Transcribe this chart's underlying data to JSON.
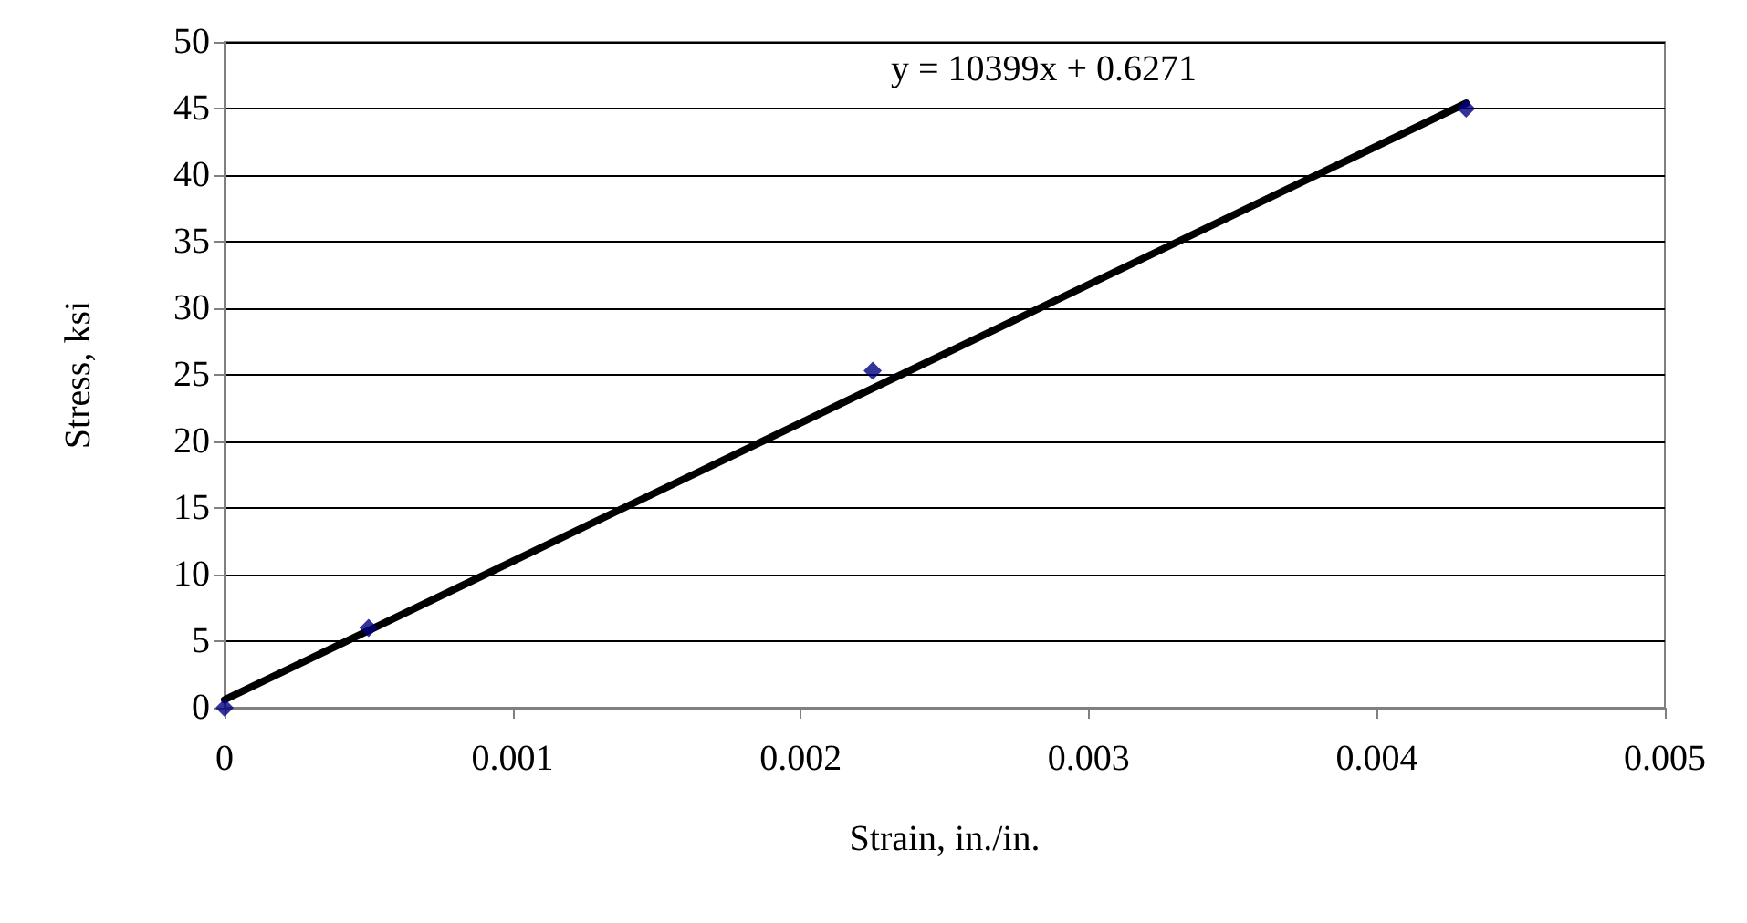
{
  "chart_data": {
    "type": "scatter",
    "xlabel": "Strain, in./in.",
    "ylabel": "Stress, ksi",
    "xlim": [
      0,
      0.005
    ],
    "xticks": [
      0,
      0.001,
      0.002,
      0.003,
      0.004,
      0.005
    ],
    "ylim": [
      0,
      50
    ],
    "yticks": [
      0,
      5,
      10,
      15,
      20,
      25,
      30,
      35,
      40,
      45,
      50
    ],
    "grid": "y",
    "annotations": [
      "y = 10399x + 0.6271"
    ],
    "series": [
      {
        "color": "#000080",
        "marker": "diamond",
        "x": [
          0,
          0.0005,
          0.00225,
          0.00431
        ],
        "values": [
          0,
          6.0,
          25.3,
          45.0
        ]
      },
      {
        "type": "line",
        "color": "#000000",
        "marker": "none",
        "line_style": "solid",
        "x": [
          0,
          0.00431
        ],
        "values": [
          0.6,
          45.4
        ]
      }
    ]
  }
}
